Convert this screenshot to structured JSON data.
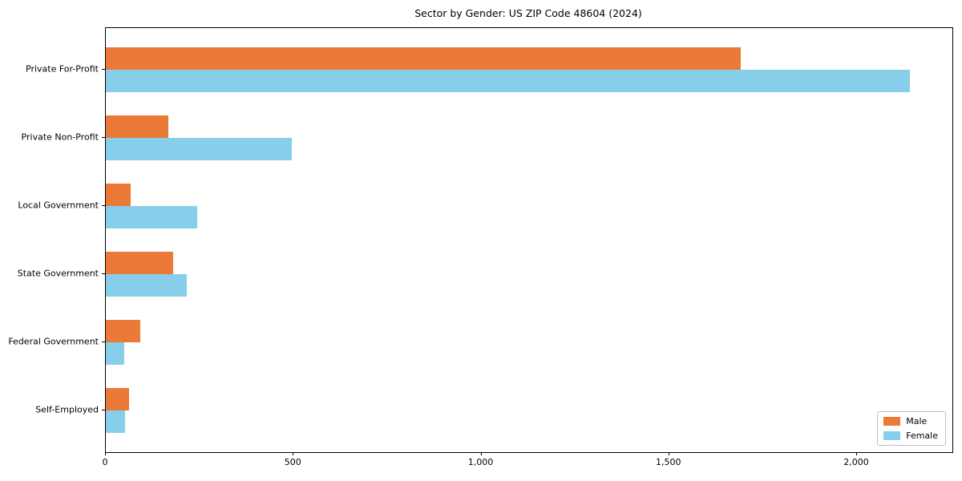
{
  "chart_data": {
    "type": "bar",
    "orientation": "horizontal",
    "title": "Sector by Gender: US ZIP Code 48604 (2024)",
    "categories": [
      "Private For-Profit",
      "Private Non-Profit",
      "Local Government",
      "State Government",
      "Federal Government",
      "Self-Employed"
    ],
    "series": [
      {
        "name": "Male",
        "color": "#EB7A39",
        "values": [
          1690,
          166,
          66,
          179,
          92,
          62
        ]
      },
      {
        "name": "Female",
        "color": "#87CEEB",
        "values": [
          2140,
          495,
          243,
          216,
          49,
          51
        ]
      }
    ],
    "xlabel": "",
    "ylabel": "",
    "xlim": [
      0,
      2254
    ],
    "x_ticks": [
      {
        "value": 0,
        "label": "0"
      },
      {
        "value": 500,
        "label": "500"
      },
      {
        "value": 1000,
        "label": "1,000"
      },
      {
        "value": 1500,
        "label": "1,500"
      },
      {
        "value": 2000,
        "label": "2,000"
      }
    ],
    "grid": false,
    "legend": {
      "position": "lower right",
      "entries": [
        "Male",
        "Female"
      ]
    }
  }
}
